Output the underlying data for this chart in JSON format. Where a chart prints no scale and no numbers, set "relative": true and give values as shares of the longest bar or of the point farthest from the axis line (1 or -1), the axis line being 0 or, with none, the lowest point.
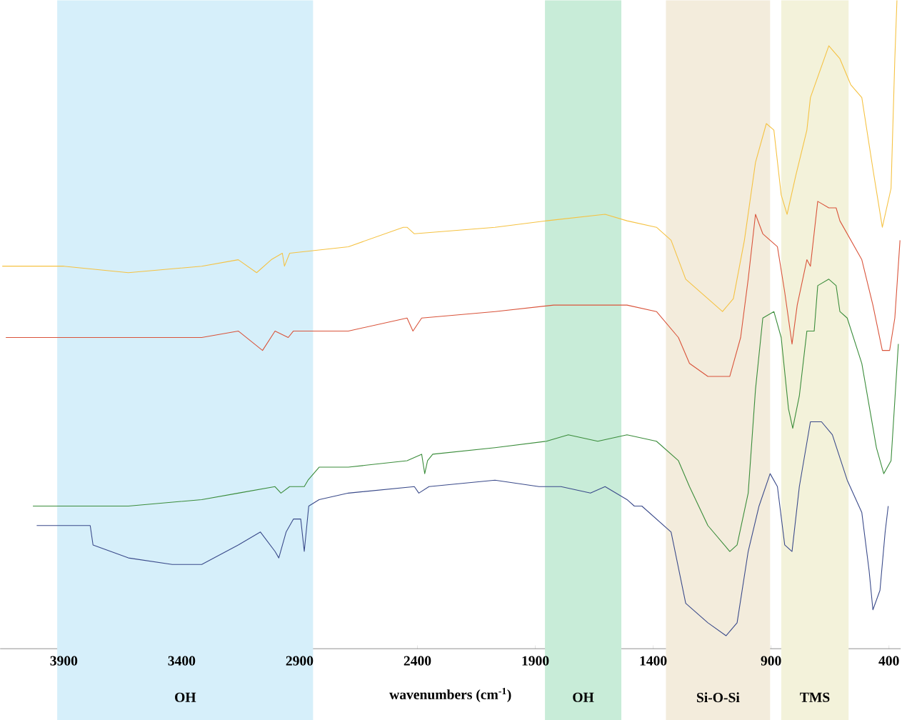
{
  "chart_data": {
    "type": "line",
    "relative": true,
    "xlabel": "wavenumbers (cm$^{-1}$)",
    "xlim": [
      4170,
      350
    ],
    "xticks": [
      3900,
      3400,
      2900,
      2400,
      1900,
      1400,
      900,
      400
    ],
    "grid": false,
    "marker": "none",
    "line_style": "solid",
    "bands": [
      {
        "axis": "x",
        "from": 3928,
        "to": 2842,
        "label": "OH",
        "color": "#d6effa"
      },
      {
        "axis": "x",
        "from": 1859,
        "to": 1535,
        "label": "OH",
        "color": "#c8ecd8"
      },
      {
        "axis": "x",
        "from": 1346,
        "to": 904,
        "label": "Si-O-Si",
        "color": "#f3ecdc"
      },
      {
        "axis": "x",
        "from": 857,
        "to": 571,
        "label": "TMS",
        "color": "#f3f2da"
      }
    ],
    "series": [
      {
        "color": "#f5c242",
        "x": [
          4161,
          3900,
          3626,
          3315,
          3160,
          3082,
          3020,
          2973,
          2964,
          2942,
          2693,
          2460,
          2444,
          2413,
          2071,
          1853,
          1604,
          1511,
          1386,
          1324,
          1262,
          1168,
          1106,
          1060,
          1013,
          966,
          920,
          888,
          857,
          832,
          795,
          748,
          733,
          655,
          608,
          562,
          515,
          468,
          428,
          391,
          375,
          366
        ],
        "values": [
          0.59,
          0.59,
          0.58,
          0.59,
          0.6,
          0.58,
          0.6,
          0.61,
          0.59,
          0.61,
          0.62,
          0.65,
          0.65,
          0.64,
          0.65,
          0.66,
          0.67,
          0.66,
          0.65,
          0.63,
          0.57,
          0.54,
          0.52,
          0.54,
          0.63,
          0.75,
          0.81,
          0.8,
          0.7,
          0.67,
          0.73,
          0.8,
          0.85,
          0.93,
          0.91,
          0.87,
          0.85,
          0.74,
          0.65,
          0.71,
          0.91,
          1.0
        ]
      },
      {
        "color": "#d9533a",
        "x": [
          4146,
          3900,
          3626,
          3315,
          3160,
          3057,
          3004,
          2948,
          2926,
          2693,
          2444,
          2419,
          2382,
          2071,
          1822,
          1604,
          1511,
          1386,
          1293,
          1246,
          1168,
          1075,
          1029,
          997,
          966,
          935,
          904,
          873,
          842,
          811,
          789,
          748,
          733,
          702,
          655,
          624,
          608,
          577,
          515,
          468,
          428,
          397,
          375,
          353
        ],
        "values": [
          0.48,
          0.48,
          0.48,
          0.48,
          0.49,
          0.46,
          0.49,
          0.48,
          0.49,
          0.49,
          0.51,
          0.49,
          0.51,
          0.52,
          0.53,
          0.53,
          0.53,
          0.52,
          0.48,
          0.44,
          0.42,
          0.42,
          0.48,
          0.57,
          0.67,
          0.64,
          0.63,
          0.62,
          0.55,
          0.47,
          0.53,
          0.6,
          0.59,
          0.69,
          0.68,
          0.68,
          0.66,
          0.64,
          0.6,
          0.53,
          0.46,
          0.46,
          0.51,
          0.63
        ]
      },
      {
        "color": "#3a8c3a",
        "x": [
          4031,
          3900,
          3626,
          3315,
          3160,
          3004,
          2979,
          2942,
          2880,
          2864,
          2817,
          2693,
          2444,
          2382,
          2369,
          2357,
          2335,
          2071,
          1853,
          1760,
          1635,
          1511,
          1386,
          1293,
          1246,
          1168,
          1075,
          1044,
          997,
          966,
          935,
          888,
          857,
          826,
          808,
          780,
          748,
          717,
          702,
          655,
          624,
          608,
          577,
          515,
          453,
          422,
          391,
          360
        ],
        "values": [
          0.22,
          0.22,
          0.22,
          0.23,
          0.24,
          0.25,
          0.24,
          0.25,
          0.25,
          0.26,
          0.28,
          0.28,
          0.29,
          0.3,
          0.27,
          0.29,
          0.3,
          0.31,
          0.32,
          0.33,
          0.32,
          0.33,
          0.32,
          0.29,
          0.25,
          0.19,
          0.15,
          0.16,
          0.24,
          0.4,
          0.51,
          0.52,
          0.48,
          0.37,
          0.34,
          0.39,
          0.49,
          0.49,
          0.56,
          0.57,
          0.56,
          0.52,
          0.51,
          0.44,
          0.31,
          0.27,
          0.29,
          0.47
        ]
      },
      {
        "color": "#3a4a8a",
        "x": [
          4015,
          3900,
          3788,
          3776,
          3626,
          3440,
          3315,
          3160,
          3066,
          3004,
          2988,
          2957,
          2926,
          2895,
          2880,
          2861,
          2817,
          2693,
          2413,
          2394,
          2351,
          2071,
          1884,
          1791,
          1666,
          1604,
          1511,
          1480,
          1448,
          1324,
          1262,
          1168,
          1091,
          1044,
          997,
          951,
          904,
          873,
          842,
          811,
          780,
          733,
          686,
          640,
          577,
          515,
          484,
          468,
          438,
          416,
          403
        ],
        "values": [
          0.19,
          0.19,
          0.19,
          0.16,
          0.14,
          0.13,
          0.13,
          0.16,
          0.18,
          0.15,
          0.14,
          0.18,
          0.2,
          0.2,
          0.15,
          0.22,
          0.23,
          0.24,
          0.25,
          0.24,
          0.25,
          0.26,
          0.25,
          0.25,
          0.24,
          0.25,
          0.23,
          0.22,
          0.22,
          0.18,
          0.07,
          0.04,
          0.02,
          0.04,
          0.15,
          0.22,
          0.27,
          0.25,
          0.16,
          0.15,
          0.25,
          0.35,
          0.35,
          0.33,
          0.26,
          0.21,
          0.12,
          0.06,
          0.09,
          0.18,
          0.22
        ]
      }
    ]
  }
}
